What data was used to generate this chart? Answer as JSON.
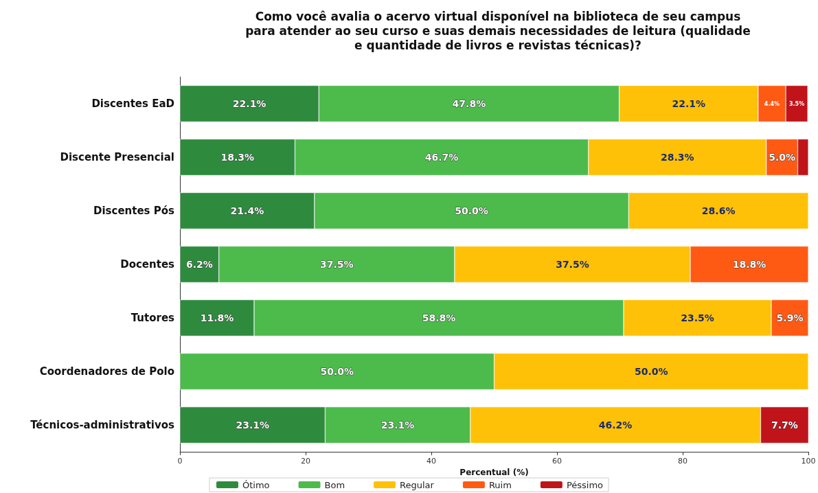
{
  "chart_data": {
    "type": "bar",
    "orientation": "horizontal",
    "stacked": true,
    "title": "Como você avalia o acervo virtual disponível na biblioteca de seu campus\npara atender ao seu curso e suas demais necessidades de leitura (qualidade\ne quantidade de livros e revistas técnicas)?",
    "xlabel": "Percentual (%)",
    "categories": [
      "Discentes EaD",
      "Discente Presencial",
      "Discentes Pós",
      "Docentes",
      "Tutores",
      "Coordenadores de Polo",
      "Técnicos-administrativos"
    ],
    "xlim": [
      0,
      100
    ],
    "xticks": [
      0,
      20,
      40,
      60,
      80,
      100
    ],
    "grid": false,
    "legend": "bottom",
    "series": [
      {
        "name": "Ótimo",
        "color": "#2e8b3e",
        "values": [
          22.1,
          18.3,
          21.4,
          6.2,
          11.8,
          null,
          23.1
        ],
        "value_labels": [
          "22.1%",
          "18.3%",
          "21.4%",
          "6.2%",
          "11.8%",
          null,
          "23.1%"
        ]
      },
      {
        "name": "Bom",
        "color": "#4cbb4c",
        "values": [
          47.8,
          46.7,
          50.0,
          37.5,
          58.8,
          50.0,
          23.1
        ],
        "value_labels": [
          "47.8%",
          "46.7%",
          "50.0%",
          "37.5%",
          "58.8%",
          "50.0%",
          "23.1%"
        ]
      },
      {
        "name": "Regular",
        "color": "#ffc107",
        "values": [
          22.1,
          28.3,
          28.6,
          37.5,
          23.5,
          50.0,
          46.2
        ],
        "value_labels": [
          "22.1%",
          "28.3%",
          "28.6%",
          "37.5%",
          "23.5%",
          "50.0%",
          "46.2%"
        ]
      },
      {
        "name": "Ruim",
        "color": "#ff5a14",
        "values": [
          4.4,
          5.0,
          null,
          18.8,
          5.9,
          null,
          null
        ],
        "value_labels": [
          "4.4%",
          "5.0%",
          null,
          "18.8%",
          "5.9%",
          null,
          null
        ]
      },
      {
        "name": "Péssimo",
        "color": "#c0141a",
        "values": [
          3.5,
          1.7,
          null,
          null,
          null,
          null,
          7.7
        ],
        "value_labels": [
          "3.5%",
          null,
          null,
          null,
          null,
          null,
          "7.7%"
        ]
      }
    ]
  }
}
